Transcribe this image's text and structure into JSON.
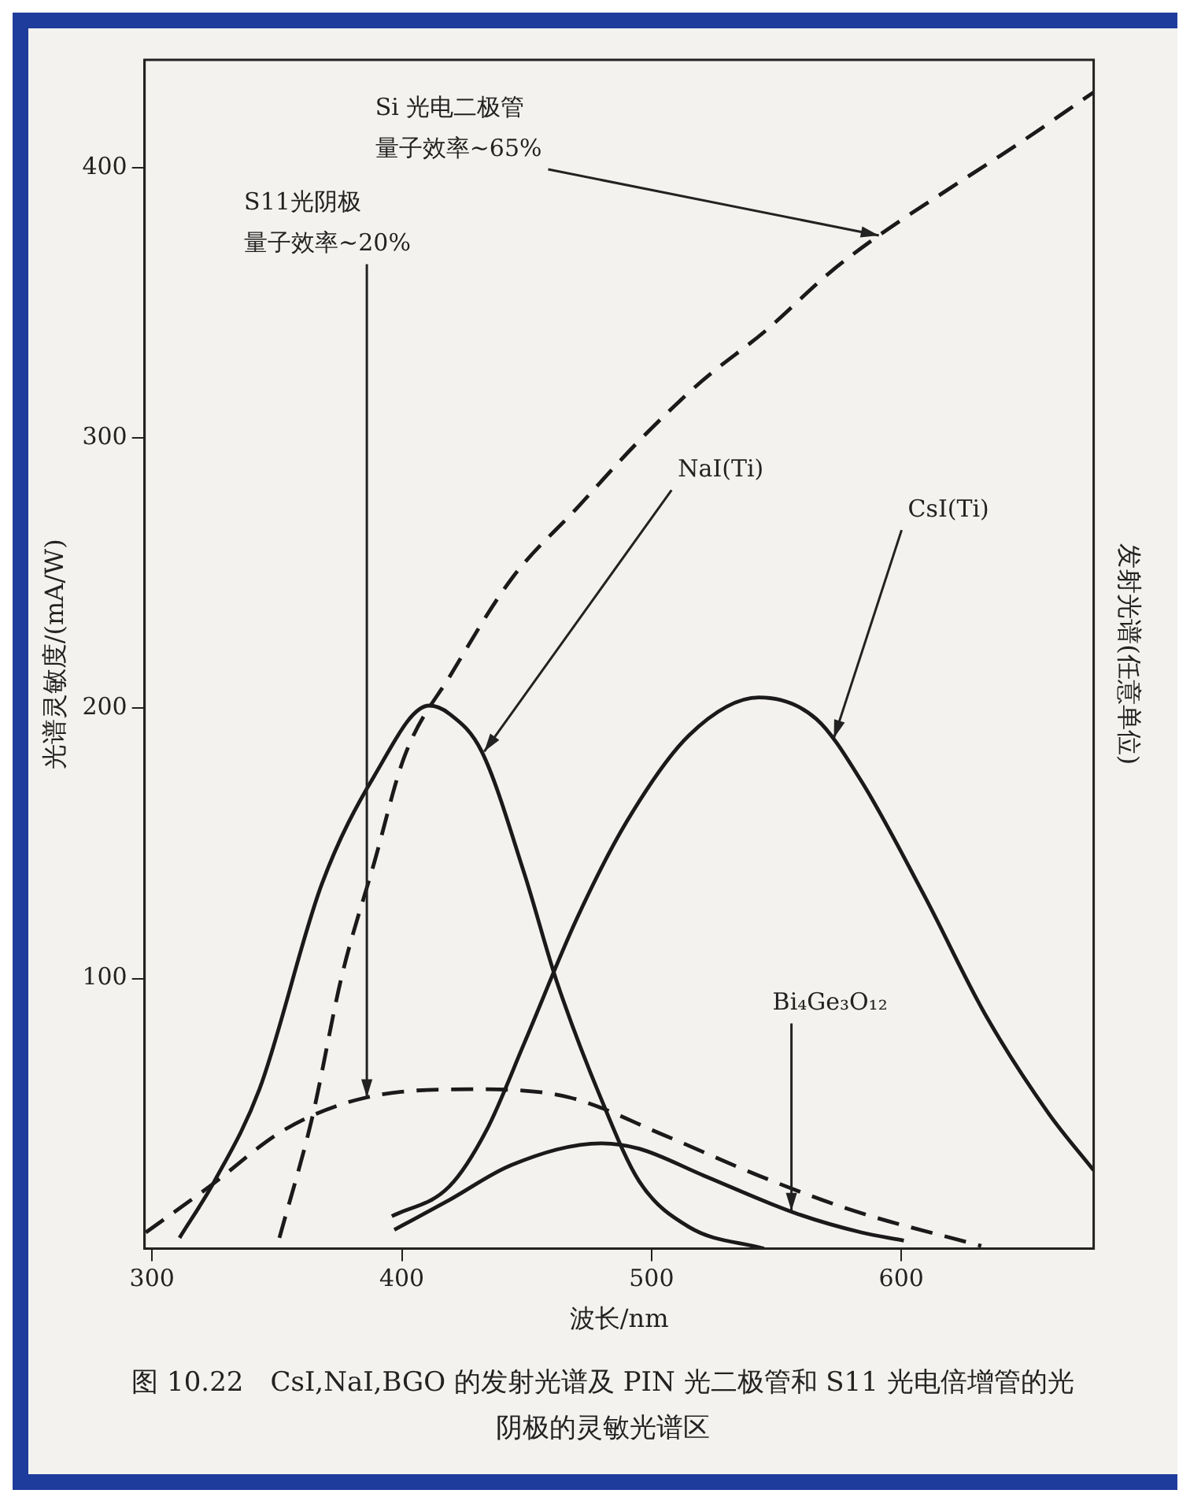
{
  "chart_data": {
    "type": "line",
    "title": "图 10.22　CsI,NaI,BGO 的发射光谱及 PIN 光二极管和 S11 光电倍增管的光阴极的灵敏光谱区",
    "xlabel": "波长/nm",
    "ylabel": "光谱灵敏度/(mA/W)",
    "y2label": "发射光谱(任意单位)",
    "series": [
      {
        "color": "#1a1a1a",
        "line_style": "dashed",
        "x": [
          351,
          364,
          376,
          389,
          401,
          420,
          444,
          470,
          495,
          520,
          546,
          571,
          591,
          622,
          647,
          677
        ],
        "values": [
          4,
          48,
          101,
          143,
          182,
          213,
          248,
          274,
          299,
          321,
          340,
          361,
          375,
          394,
          409,
          428
        ]
      },
      {
        "color": "#1a1a1a",
        "line_style": "dashed",
        "x": [
          297.5,
          323,
          353,
          386,
          429,
          467,
          505,
          543,
          581,
          632
        ],
        "values": [
          6,
          23,
          44,
          56,
          59,
          56,
          42,
          27,
          14,
          1
        ]
      },
      {
        "color": "#1a1a1a",
        "line_style": "solid",
        "x": [
          311,
          325,
          343,
          368,
          389,
          411,
          419,
          432,
          449,
          462,
          480,
          495,
          515,
          545
        ],
        "values": [
          4,
          25,
          59,
          135,
          175,
          201,
          198,
          184,
          139,
          99,
          55,
          25,
          8,
          0
        ]
      },
      {
        "color": "#1a1a1a",
        "line_style": "solid",
        "x": [
          396,
          419,
          434,
          449,
          470,
          490,
          515,
          543,
          566,
          584,
          609,
          634,
          659,
          677
        ],
        "values": [
          12,
          23,
          44,
          76,
          122,
          158,
          190,
          204,
          196,
          173,
          131,
          86,
          50,
          29
        ]
      },
      {
        "color": "#1a1a1a",
        "line_style": "solid",
        "x": [
          397,
          419,
          444,
          480,
          495,
          521,
          558,
          584,
          601
        ],
        "values": [
          7,
          18,
          31,
          39,
          37,
          27,
          13,
          6,
          3
        ]
      }
    ],
    "annotations": [
      {
        "text": "Si 光电二极管量子效率~65%",
        "x": 591,
        "y": 375
      },
      {
        "text": "S11光阴极量子效率~20%",
        "x": 386,
        "y": 56
      },
      {
        "text": "NaI(Ti)",
        "x": 433,
        "y": 184
      },
      {
        "text": "CsI(Ti)",
        "x": 573,
        "y": 189
      },
      {
        "text": "Bi₄Ge₃O₁₂",
        "x": 556,
        "y": 14
      }
    ],
    "xlim": [
      297,
      677
    ],
    "ylim": [
      0,
      440
    ],
    "xticks": [
      300,
      400,
      500,
      600
    ],
    "yticks": [
      100,
      200,
      300,
      400
    ],
    "grid": false,
    "legend": false,
    "marker": "none"
  }
}
